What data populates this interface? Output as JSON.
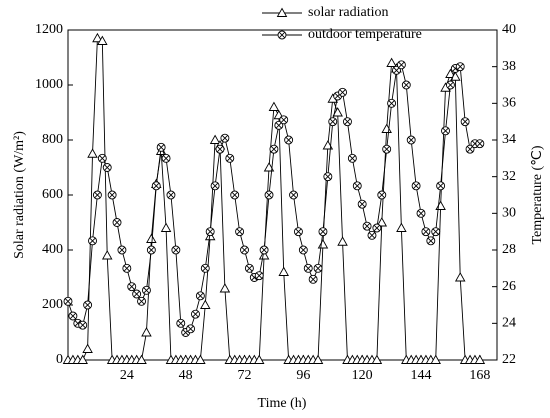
{
  "chart_data": {
    "type": "line",
    "x": [
      0,
      2,
      4,
      6,
      8,
      10,
      12,
      14,
      16,
      18,
      20,
      22,
      24,
      26,
      28,
      30,
      32,
      34,
      36,
      38,
      40,
      42,
      44,
      46,
      48,
      50,
      52,
      54,
      56,
      58,
      60,
      62,
      64,
      66,
      68,
      70,
      72,
      74,
      76,
      78,
      80,
      82,
      84,
      86,
      88,
      90,
      92,
      94,
      96,
      98,
      100,
      102,
      104,
      106,
      108,
      110,
      112,
      114,
      116,
      118,
      120,
      122,
      124,
      126,
      128,
      130,
      132,
      134,
      136,
      138,
      140,
      142,
      144,
      146,
      148,
      150,
      152,
      154,
      156,
      158,
      160,
      162,
      164,
      166,
      168
    ],
    "series": [
      {
        "name": "solar radiation",
        "color": "#000000",
        "marker": "triangle",
        "values": [
          0,
          0,
          0,
          0,
          40,
          750,
          1170,
          1160,
          380,
          0,
          0,
          0,
          0,
          0,
          0,
          0,
          100,
          440,
          640,
          760,
          480,
          0,
          0,
          0,
          0,
          0,
          0,
          0,
          200,
          450,
          800,
          780,
          260,
          0,
          0,
          0,
          0,
          0,
          0,
          0,
          380,
          700,
          920,
          890,
          320,
          0,
          0,
          0,
          0,
          0,
          0,
          0,
          420,
          780,
          950,
          900,
          430,
          0,
          0,
          0,
          0,
          0,
          0,
          0,
          500,
          840,
          1080,
          1060,
          480,
          0,
          0,
          0,
          0,
          0,
          0,
          0,
          560,
          990,
          1040,
          1030,
          300,
          0,
          0,
          0,
          0
        ]
      },
      {
        "name": "outdoor temperature",
        "color": "#000000",
        "marker": "crossed-circle",
        "axis": "y2",
        "values": [
          25.2,
          24.4,
          24.0,
          23.9,
          25,
          28.5,
          31,
          33,
          32.5,
          31,
          29.5,
          28,
          27,
          26,
          25.6,
          25.2,
          25.8,
          28,
          31.5,
          33.6,
          33,
          31,
          28,
          24,
          23.5,
          23.7,
          24.5,
          25.5,
          27,
          29,
          31.5,
          33.5,
          34.1,
          33,
          31,
          29,
          28,
          27,
          26.5,
          26.6,
          28,
          31,
          33.5,
          34.8,
          35.1,
          34,
          31,
          29,
          28,
          27,
          26.4,
          27,
          29,
          32,
          35,
          36.4,
          36.6,
          35,
          33,
          31.5,
          30.5,
          29.3,
          28.8,
          29.2,
          31,
          33.5,
          36,
          37.8,
          38.1,
          37,
          34,
          31.5,
          30,
          29,
          28.5,
          29,
          31.5,
          34.5,
          37,
          37.9,
          38,
          35,
          33.5,
          33.8,
          33.8
        ]
      }
    ],
    "x_label": "Time (h)",
    "y_label": "Solar radiation (W/m²)",
    "y2_label": "Temperature (℃)",
    "xlim": [
      0,
      175
    ],
    "xticks": [
      24,
      48,
      72,
      96,
      120,
      144,
      168
    ],
    "ylim": [
      0,
      1200
    ],
    "yticks": [
      0,
      200,
      400,
      600,
      800,
      1000,
      1200
    ],
    "y2lim": [
      22,
      40
    ],
    "y2ticks": [
      22,
      24,
      26,
      28,
      30,
      32,
      34,
      36,
      38,
      40
    ],
    "legend": "top",
    "grid": false
  }
}
